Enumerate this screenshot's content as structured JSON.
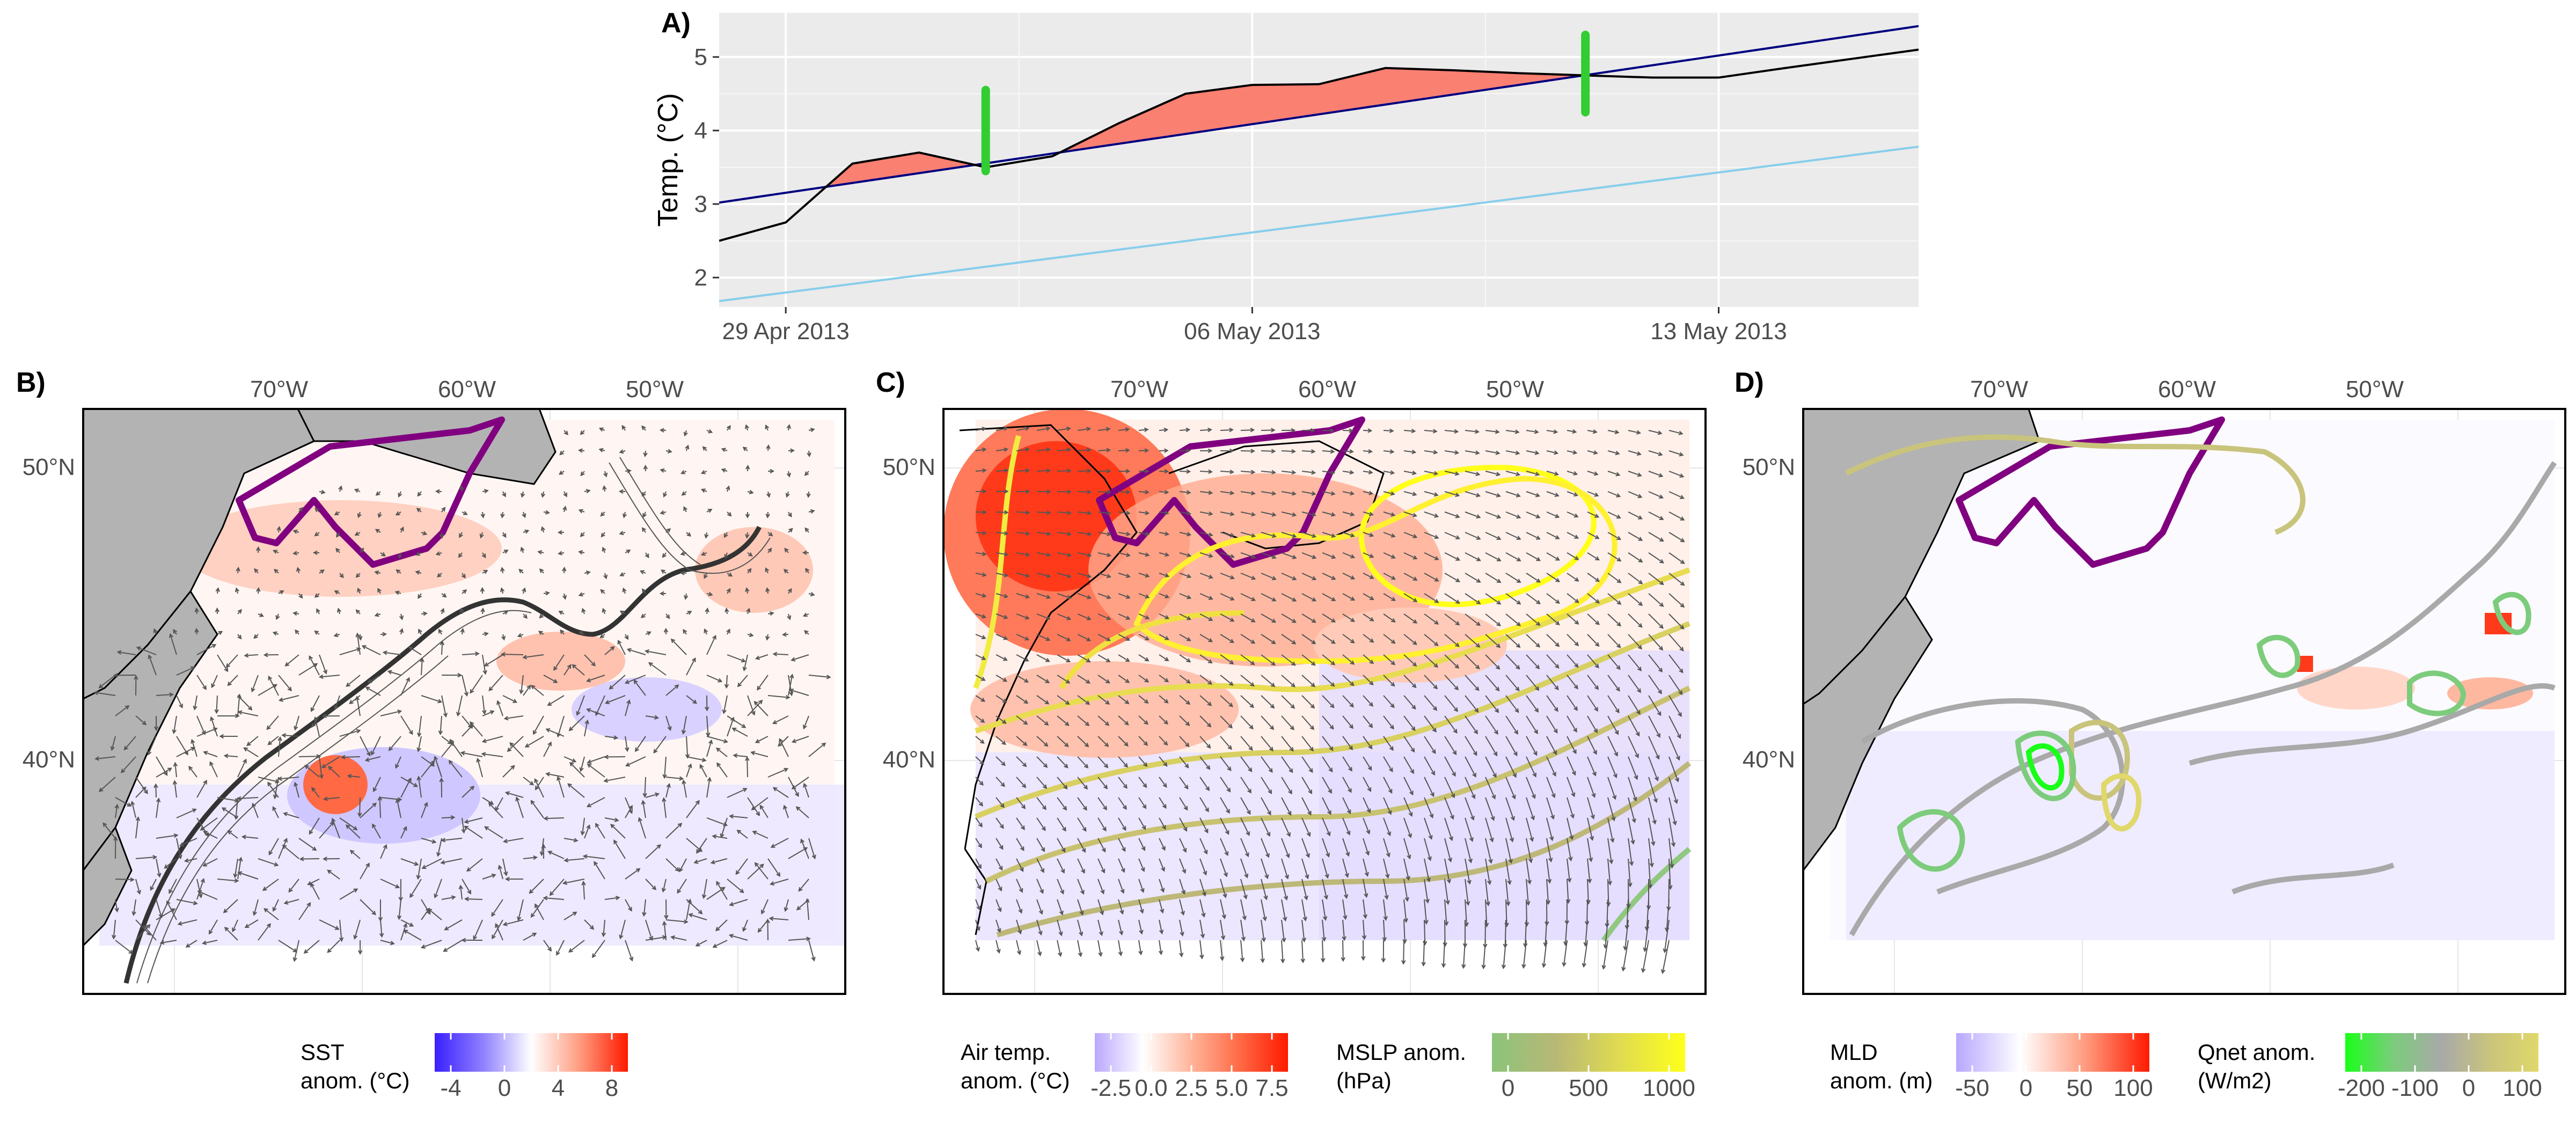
{
  "chart_data": [
    {
      "panel": "A)",
      "type": "line",
      "ylabel": "Temp. (°C)",
      "xlabel": "",
      "x_ticks": [
        "29 Apr 2013",
        "06 May 2013",
        "13 May 2013"
      ],
      "y_ticks": [
        2,
        3,
        4,
        5
      ],
      "ylim": [
        1.6,
        5.6
      ],
      "x_range": [
        "28 Apr 2013",
        "16 May 2013"
      ],
      "grid": true,
      "series": [
        {
          "color": "#000000",
          "values": [
            {
              "x": "28 Apr 2013",
              "y": 2.5
            },
            {
              "x": "29 Apr 2013",
              "y": 2.75
            },
            {
              "x": "30 Apr 2013",
              "y": 3.55
            },
            {
              "x": "01 May 2013",
              "y": 3.7
            },
            {
              "x": "02 May 2013",
              "y": 3.5
            },
            {
              "x": "03 May 2013",
              "y": 3.65
            },
            {
              "x": "04 May 2013",
              "y": 4.1
            },
            {
              "x": "05 May 2013",
              "y": 4.5
            },
            {
              "x": "06 May 2013",
              "y": 4.62
            },
            {
              "x": "07 May 2013",
              "y": 4.63
            },
            {
              "x": "08 May 2013",
              "y": 4.85
            },
            {
              "x": "09 May 2013",
              "y": 4.82
            },
            {
              "x": "10 May 2013",
              "y": 4.78
            },
            {
              "x": "11 May 2013",
              "y": 4.75
            },
            {
              "x": "12 May 2013",
              "y": 4.72
            },
            {
              "x": "13 May 2013",
              "y": 4.72
            },
            {
              "x": "14 May 2013",
              "y": 4.85
            },
            {
              "x": "16 May 2013",
              "y": 5.1
            }
          ]
        },
        {
          "color": "#000080",
          "values": [
            {
              "x": "28 Apr 2013",
              "y": 3.02
            },
            {
              "x": "16 May 2013",
              "y": 5.42
            }
          ]
        },
        {
          "color": "#87ceeb",
          "values": [
            {
              "x": "28 Apr 2013",
              "y": 1.68
            },
            {
              "x": "16 May 2013",
              "y": 3.78
            }
          ]
        }
      ],
      "fill_color": "#fa8072",
      "markers": [
        {
          "x": "02 May 2013",
          "y_from": 3.45,
          "y_to": 4.55,
          "color": "#32cd32"
        },
        {
          "x": "11 May 2013",
          "y_from": 4.25,
          "y_to": 5.3,
          "color": "#32cd32"
        }
      ]
    },
    {
      "panel": "B)",
      "type": "heatmap",
      "x_ticks": [
        "70°W",
        "60°W",
        "50°W"
      ],
      "y_ticks": [
        "50°N",
        "40°N"
      ],
      "colorbar": {
        "title_lines": [
          "SST",
          "anom. (°C)"
        ],
        "ticks": [
          "-4",
          "0",
          "4",
          "8"
        ],
        "colors": [
          "#3a1fff",
          "#8f80ff",
          "#ffffff",
          "#ff9c80",
          "#ff1a00"
        ]
      },
      "polygon_color": "#800080"
    },
    {
      "panel": "C)",
      "type": "heatmap",
      "x_ticks": [
        "70°W",
        "60°W",
        "50°W"
      ],
      "y_ticks": [
        "50°N",
        "40°N"
      ],
      "colorbar": {
        "title_lines": [
          "Air temp.",
          "anom. (°C)"
        ],
        "ticks": [
          "-2.5",
          "0.0",
          "2.5",
          "5.0",
          "7.5"
        ],
        "colors": [
          "#bba8ff",
          "#ffffff",
          "#ffb49a",
          "#ff6a45",
          "#ff1a00"
        ]
      },
      "colorbar2": {
        "title_lines": [
          "MSLP anom.",
          "(hPa)"
        ],
        "ticks": [
          "0",
          "500",
          "1000"
        ],
        "colors": [
          "#8cc47a",
          "#b8b876",
          "#e0dc50",
          "#ffff1a"
        ]
      },
      "polygon_color": "#800080"
    },
    {
      "panel": "D)",
      "type": "heatmap",
      "x_ticks": [
        "70°W",
        "60°W",
        "50°W"
      ],
      "y_ticks": [
        "50°N",
        "40°N"
      ],
      "colorbar": {
        "title_lines": [
          "MLD",
          "anom. (m)"
        ],
        "ticks": [
          "-50",
          "0",
          "50",
          "100"
        ],
        "colors": [
          "#b8a8ff",
          "#ffffff",
          "#ff9c80",
          "#ff1a00"
        ]
      },
      "colorbar2": {
        "title_lines": [
          "Qnet anom.",
          "(W/m2)"
        ],
        "ticks": [
          "-200",
          "-100",
          "0",
          "100"
        ],
        "colors": [
          "#1aff1a",
          "#7ccc7c",
          "#a9a9a9",
          "#c9c47c",
          "#e0d86a"
        ]
      },
      "polygon_color": "#800080"
    }
  ]
}
